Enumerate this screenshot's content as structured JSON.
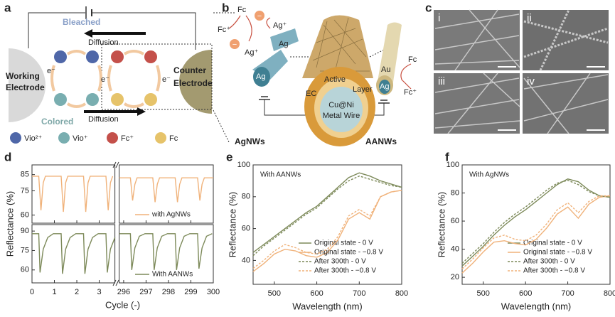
{
  "panel_labels": [
    "a",
    "b",
    "c",
    "d",
    "e",
    "f"
  ],
  "diagram_a": {
    "bleached": "Bleached",
    "colored": "Colored",
    "diffusion_top": "Diffusion",
    "diffusion_bottom": "Diffusion",
    "working_electrode": [
      "Working",
      "Electrode"
    ],
    "counter_electrode": [
      "Counter",
      "Electrode"
    ],
    "electrons": [
      "e⁻",
      "e⁻",
      "e⁻"
    ],
    "legend": [
      {
        "label": "Vio²⁺",
        "color": "#4f67a8"
      },
      {
        "label": "Vio⁺",
        "color": "#79aeb0"
      },
      {
        "label": "Fc⁺",
        "color": "#c4504a"
      },
      {
        "label": "Fc",
        "color": "#e6c36a"
      }
    ]
  },
  "diagram_b": {
    "fc_left": "Fc",
    "fc_plus_left": "Fc⁺",
    "ag_plus": [
      "Ag⁺",
      "Ag⁺"
    ],
    "ag": [
      "Ag",
      "Ag"
    ],
    "minus": [
      "−",
      "−"
    ],
    "ec": "EC",
    "active": "Active",
    "layer": "Layer",
    "core": [
      "Cu@Ni",
      "Metal Wire"
    ],
    "agnws": "AgNWs",
    "aanws": "AANWs",
    "au": "Au",
    "ag_right": "Ag",
    "fc_right": "Fc",
    "fc_plus_right": "Fc⁺"
  },
  "sem_images": {
    "labels": [
      "i",
      "ii",
      "iii",
      "iv"
    ]
  },
  "chart_data": [
    {
      "type": "line",
      "xlabel": "Cycle (-)",
      "ylabel": "Reflectance (%)",
      "xlim": [
        [
          0,
          3.7
        ],
        [
          295.8,
          300
        ]
      ],
      "xticks": [
        0,
        1,
        2,
        3,
        296,
        297,
        298,
        299,
        300
      ],
      "subplots": [
        {
          "ylim": [
            55,
            91
          ],
          "yticks": [
            60,
            75,
            85
          ],
          "series": [
            {
              "name": "with AgNWs",
              "color": "#f0b27a",
              "x": [
                0,
                0.3,
                0.4,
                0.5,
                0.6,
                1.3,
                1.4,
                1.5,
                1.6,
                2.3,
                2.4,
                2.5,
                2.6,
                3.3,
                3.4,
                3.5,
                3.6,
                295.8,
                296.3,
                296.4,
                296.5,
                296.6,
                297.3,
                297.4,
                297.5,
                297.6,
                298.3,
                298.4,
                298.5,
                298.6,
                299.3,
                299.4,
                299.5,
                299.6,
                300
              ],
              "values": [
                84,
                84,
                63,
                80,
                84,
                84,
                62,
                80,
                84,
                84,
                62,
                80,
                84,
                84,
                63,
                80,
                84,
                83,
                83,
                69,
                79,
                83,
                83,
                68,
                79,
                83,
                83,
                68,
                79,
                83,
                83,
                69,
                79,
                83,
                83
              ]
            }
          ]
        },
        {
          "ylim": [
            50,
            95
          ],
          "yticks": [
            60,
            75,
            90
          ],
          "series": [
            {
              "name": "With AANWs",
              "color": "#7d8a5a",
              "x": [
                0,
                0.3,
                0.36,
                0.5,
                0.7,
                0.95,
                1.3,
                1.36,
                1.5,
                1.7,
                1.95,
                2.3,
                2.36,
                2.5,
                2.7,
                2.95,
                3.3,
                3.36,
                3.5,
                3.7,
                295.8,
                296.3,
                296.36,
                296.5,
                296.7,
                296.95,
                297.3,
                297.36,
                297.5,
                297.7,
                297.95,
                298.3,
                298.36,
                298.5,
                298.7,
                298.95,
                299.3,
                299.36,
                299.5,
                299.7,
                299.95
              ],
              "values": [
                88,
                88,
                58,
                76,
                85,
                88,
                88,
                57,
                76,
                85,
                88,
                88,
                57,
                76,
                85,
                88,
                88,
                58,
                76,
                85,
                88,
                88,
                60,
                77,
                86,
                88,
                88,
                60,
                77,
                86,
                88,
                88,
                60,
                77,
                86,
                88,
                88,
                61,
                77,
                86,
                88
              ]
            }
          ]
        }
      ]
    },
    {
      "type": "line",
      "annotation": "With AANWs",
      "xlabel": "Wavelength (nm)",
      "ylabel": "Reflectance (%)",
      "xlim": [
        450,
        800
      ],
      "xticks": [
        500,
        600,
        700,
        800
      ],
      "ylim": [
        25,
        100
      ],
      "yticks": [
        40,
        60,
        80,
        100
      ],
      "x": [
        450,
        475,
        500,
        525,
        550,
        575,
        600,
        625,
        650,
        675,
        700,
        725,
        750,
        775,
        800
      ],
      "series": [
        {
          "name": "Original state - 0 V",
          "color": "#7d8a5a",
          "dashed": false,
          "values": [
            45,
            50,
            55,
            60,
            65,
            70,
            74,
            80,
            86,
            92,
            95,
            93,
            90,
            88,
            86
          ]
        },
        {
          "name": "Original state - −0.8 V",
          "color": "#f0b27a",
          "dashed": false,
          "values": [
            33,
            38,
            44,
            47,
            46,
            43,
            42,
            45,
            53,
            66,
            70,
            66,
            80,
            83,
            84
          ]
        },
        {
          "name": "After 300th - 0 V",
          "color": "#7d8a5a",
          "dashed": true,
          "values": [
            43,
            49,
            54,
            59,
            64,
            69,
            73,
            79,
            85,
            90,
            93,
            91,
            89,
            87,
            86
          ]
        },
        {
          "name": "After 300th - −0.8 V",
          "color": "#f0b27a",
          "dashed": true,
          "values": [
            35,
            40,
            46,
            50,
            48,
            45,
            44,
            47,
            55,
            68,
            72,
            68,
            80,
            83,
            84
          ]
        }
      ]
    },
    {
      "type": "line",
      "annotation": "With AgNWs",
      "xlabel": "Wavelength (nm)",
      "ylabel": "Reflectance (%)",
      "xlim": [
        450,
        800
      ],
      "xticks": [
        500,
        600,
        700,
        800
      ],
      "ylim": [
        15,
        100
      ],
      "yticks": [
        20,
        40,
        60,
        80,
        100
      ],
      "x": [
        450,
        475,
        500,
        525,
        550,
        575,
        600,
        625,
        650,
        675,
        700,
        725,
        750,
        775,
        800
      ],
      "series": [
        {
          "name": "Original state - 0 V",
          "color": "#7d8a5a",
          "dashed": false,
          "values": [
            28,
            35,
            42,
            50,
            57,
            63,
            68,
            74,
            80,
            86,
            90,
            88,
            82,
            78,
            77
          ]
        },
        {
          "name": "Original state - −0.8 V",
          "color": "#f0b27a",
          "dashed": false,
          "values": [
            23,
            30,
            38,
            45,
            46,
            44,
            43,
            47,
            55,
            65,
            70,
            62,
            72,
            77,
            78
          ]
        },
        {
          "name": "After 300th - 0 V",
          "color": "#7d8a5a",
          "dashed": true,
          "values": [
            30,
            37,
            44,
            52,
            59,
            65,
            70,
            76,
            82,
            87,
            89,
            86,
            81,
            78,
            77
          ]
        },
        {
          "name": "After 300th - −0.8 V",
          "color": "#f0b27a",
          "dashed": true,
          "values": [
            26,
            33,
            41,
            48,
            50,
            47,
            46,
            50,
            58,
            68,
            73,
            66,
            74,
            78,
            78
          ]
        }
      ]
    }
  ]
}
